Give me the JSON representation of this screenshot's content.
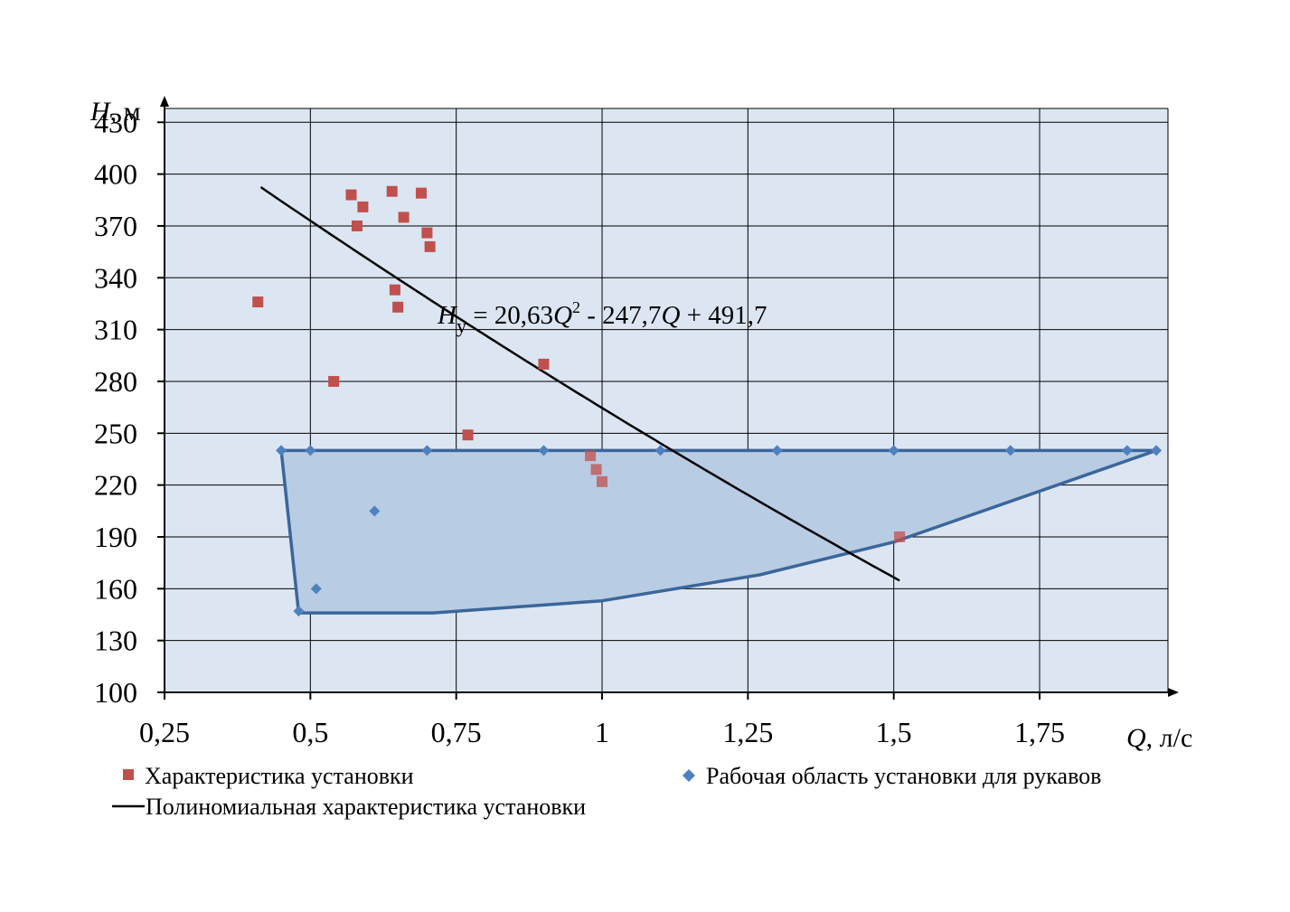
{
  "chart_data": {
    "type": "scatter",
    "xlabel": {
      "var": "Q",
      "unit": ", л/с"
    },
    "ylabel": {
      "var": "H",
      "unit": ", м"
    },
    "xlim": [
      0.25,
      1.97
    ],
    "ylim": [
      100,
      438
    ],
    "x_ticks": [
      0.25,
      0.5,
      0.75,
      1,
      1.25,
      1.5,
      1.75
    ],
    "x_tick_labels": [
      "0,25",
      "0,5",
      "0,75",
      "1",
      "1,25",
      "1,5",
      "1,75"
    ],
    "y_ticks": [
      100,
      130,
      160,
      190,
      220,
      250,
      280,
      310,
      340,
      370,
      400,
      430
    ],
    "y_tick_labels": [
      "100",
      "130",
      "160",
      "190",
      "220",
      "250",
      "280",
      "310",
      "340",
      "370",
      "400",
      "430"
    ],
    "grid": true,
    "background_color": "#dce6f2",
    "series": [
      {
        "name": "Характеристика установки",
        "marker": "square",
        "color": "#c0504d",
        "points": [
          [
            0.41,
            326
          ],
          [
            0.54,
            280
          ],
          [
            0.57,
            388
          ],
          [
            0.58,
            370
          ],
          [
            0.59,
            381
          ],
          [
            0.64,
            390
          ],
          [
            0.645,
            333
          ],
          [
            0.65,
            323
          ],
          [
            0.66,
            375
          ],
          [
            0.69,
            389
          ],
          [
            0.7,
            366
          ],
          [
            0.705,
            358
          ],
          [
            0.77,
            249
          ],
          [
            0.9,
            290
          ],
          [
            0.98,
            237
          ],
          [
            0.99,
            229
          ],
          [
            1.0,
            222
          ],
          [
            1.51,
            190
          ]
        ]
      },
      {
        "name": "Рабочая область  установки для рукавов",
        "marker": "diamond",
        "color": "#4f81bd",
        "points": [
          [
            0.45,
            240
          ],
          [
            0.5,
            240
          ],
          [
            0.7,
            240
          ],
          [
            0.9,
            240
          ],
          [
            1.1,
            240
          ],
          [
            1.3,
            240
          ],
          [
            1.5,
            240
          ],
          [
            1.7,
            240
          ],
          [
            1.9,
            240
          ],
          [
            1.95,
            240
          ],
          [
            0.48,
            147
          ],
          [
            0.51,
            160
          ],
          [
            0.61,
            205
          ]
        ],
        "region_outline": [
          [
            0.45,
            240
          ],
          [
            1.95,
            240
          ],
          [
            1.5,
            187
          ],
          [
            1.27,
            168
          ],
          [
            1.0,
            153
          ],
          [
            0.71,
            146
          ],
          [
            0.48,
            146
          ],
          [
            0.45,
            240
          ]
        ],
        "region_fill": "#b8cce4",
        "region_stroke": "#3b669a"
      },
      {
        "name": "Полиномиальная характеристика установки",
        "type": "line",
        "color": "#000000",
        "polynomial": {
          "a": 20.63,
          "b": -247.7,
          "c": 491.7
        },
        "x_range": [
          0.415,
          1.51
        ]
      }
    ],
    "annotation": {
      "var": "H",
      "sub": "у",
      "text_1": " = 20,63",
      "var_q": "Q",
      "sup": "2",
      "text_2": " - 247,7",
      "text_3": " + 491,7"
    },
    "legend": {
      "placement": "bottom",
      "items": [
        {
          "label": "Характеристика установки",
          "marker": "square"
        },
        {
          "label": "Рабочая область  установки для рукавов",
          "marker": "diamond"
        },
        {
          "label": "Полиномиальная характеристика установки",
          "marker": "line"
        }
      ]
    }
  }
}
